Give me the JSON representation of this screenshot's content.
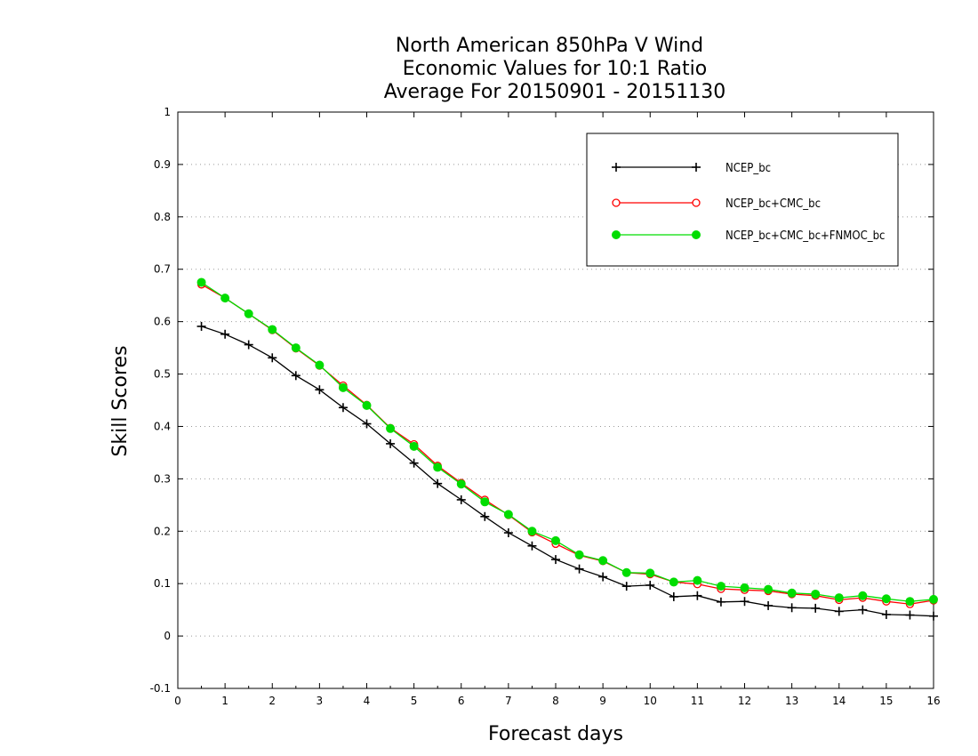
{
  "chart_data": {
    "type": "line",
    "title_lines": [
      "North American 850hPa V Wind",
      "Economic Values for 10:1 Ratio",
      "Average For 20150901 - 20151130"
    ],
    "xlabel": "Forecast days",
    "ylabel": "Skill Scores",
    "xlim": [
      0,
      16
    ],
    "ylim": [
      -0.1,
      1
    ],
    "x_ticks": [
      0,
      1,
      2,
      3,
      4,
      5,
      6,
      7,
      8,
      9,
      10,
      11,
      12,
      13,
      14,
      15,
      16
    ],
    "x_tick_labels": [
      "0",
      "1",
      "2",
      "3",
      "4",
      "5",
      "6",
      "7",
      "8",
      "9",
      "10",
      "11",
      "12",
      "13",
      "14",
      "15",
      "16"
    ],
    "y_ticks": [
      -0.1,
      0,
      0.1,
      0.2,
      0.3,
      0.4,
      0.5,
      0.6,
      0.7,
      0.8,
      0.9,
      1
    ],
    "y_tick_labels": [
      "-0.1",
      "0",
      "0.1",
      "0.2",
      "0.3",
      "0.4",
      "0.5",
      "0.6",
      "0.7",
      "0.8",
      "0.9",
      "1"
    ],
    "grid": "horizontal-dotted",
    "legend_position": "top-right",
    "x": [
      0.5,
      1,
      1.5,
      2,
      2.5,
      3,
      3.5,
      4,
      4.5,
      5,
      5.5,
      6,
      6.5,
      7,
      7.5,
      8,
      8.5,
      9,
      9.5,
      10,
      10.5,
      11,
      11.5,
      12,
      12.5,
      13,
      13.5,
      14,
      14.5,
      15,
      15.5,
      16
    ],
    "series": [
      {
        "name": "NCEP_bc",
        "color": "#000000",
        "marker": "plus",
        "values": [
          0.591,
          0.576,
          0.556,
          0.531,
          0.497,
          0.47,
          0.436,
          0.405,
          0.367,
          0.33,
          0.291,
          0.26,
          0.228,
          0.197,
          0.172,
          0.146,
          0.128,
          0.113,
          0.095,
          0.097,
          0.075,
          0.077,
          0.065,
          0.066,
          0.058,
          0.054,
          0.053,
          0.047,
          0.05,
          0.041,
          0.04,
          0.038
        ]
      },
      {
        "name": "NCEP_bc+CMC_bc",
        "color": "#ff0000",
        "marker": "open-circle",
        "values": [
          0.671,
          0.645,
          0.615,
          0.584,
          0.549,
          0.516,
          0.478,
          0.441,
          0.397,
          0.366,
          0.325,
          0.292,
          0.26,
          0.231,
          0.198,
          0.176,
          0.154,
          0.143,
          0.121,
          0.118,
          0.103,
          0.099,
          0.09,
          0.088,
          0.086,
          0.08,
          0.077,
          0.069,
          0.073,
          0.066,
          0.061,
          0.068
        ]
      },
      {
        "name": "NCEP_bc+CMC_bc+FNMOC_bc",
        "color": "#00dd00",
        "marker": "filled-circle",
        "values": [
          0.675,
          0.645,
          0.615,
          0.585,
          0.55,
          0.517,
          0.474,
          0.44,
          0.396,
          0.362,
          0.322,
          0.29,
          0.256,
          0.232,
          0.2,
          0.182,
          0.155,
          0.144,
          0.121,
          0.12,
          0.103,
          0.106,
          0.095,
          0.092,
          0.089,
          0.082,
          0.08,
          0.073,
          0.077,
          0.071,
          0.066,
          0.07
        ]
      }
    ]
  }
}
